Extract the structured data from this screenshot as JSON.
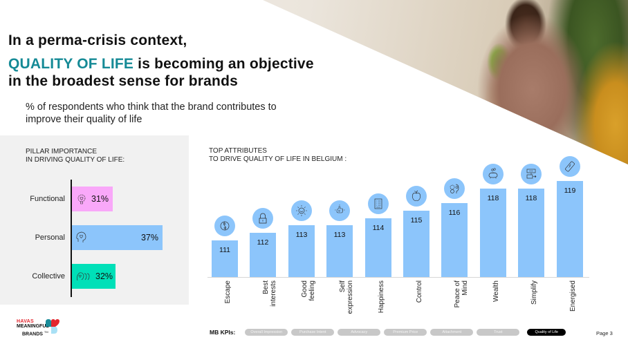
{
  "header": {
    "title_line1": "In a perma-crisis context,",
    "title_accent": "QUALITY OF LIFE",
    "title_line2_rest": " is becoming an objective",
    "title_line3": "in the broadest sense for brands",
    "subtitle_line1": "% of respondents who think that the brand contributes to",
    "subtitle_line2": "improve their quality of life",
    "accent_color": "#158a96"
  },
  "left_panel": {
    "heading_line1": "PILLAR IMPORTANCE",
    "heading_line2": "IN DRIVING QUALITY OF LIFE:"
  },
  "right_panel": {
    "heading_line1": "TOP ATTRIBUTES",
    "heading_line2": "TO DRIVE QUALITY OF LIFE IN BELGIUM :"
  },
  "chart_data": [
    {
      "type": "bar",
      "orientation": "horizontal",
      "title": "PILLAR IMPORTANCE IN DRIVING QUALITY OF LIFE:",
      "categories": [
        "Functional",
        "Personal",
        "Collective"
      ],
      "values": [
        31,
        37,
        32
      ],
      "value_labels": [
        "31%",
        "37%",
        "32%"
      ],
      "colors": [
        "#f9a8f9",
        "#8cc5fb",
        "#00e0b8"
      ],
      "icons": [
        "gear-heart-icon",
        "head-heart-icon",
        "group-heads-heart-icon"
      ],
      "unit": "%"
    },
    {
      "type": "bar",
      "orientation": "vertical",
      "title": "TOP ATTRIBUTES TO DRIVE QUALITY OF LIFE IN BELGIUM :",
      "categories": [
        "Escape",
        "Best interests",
        "Good feeling",
        "Self expression",
        "Happiness",
        "Control",
        "Peace of Mind",
        "Wealth",
        "Simplify",
        "Energised"
      ],
      "label_lines": [
        [
          "Escape"
        ],
        [
          "Best",
          "interests"
        ],
        [
          "Good",
          "feeling"
        ],
        [
          "Self",
          "expression"
        ],
        [
          "Happiness"
        ],
        [
          "Control"
        ],
        [
          "Peace of",
          "Mind"
        ],
        [
          "Wealth"
        ],
        [
          "Simplify"
        ],
        [
          "Energised"
        ]
      ],
      "values": [
        111,
        112,
        113,
        113,
        114,
        115,
        116,
        118,
        118,
        119
      ],
      "icons": [
        "yin-yang-icon",
        "padlock-icon",
        "smiling-sun-icon",
        "thumbs-up-heart-icon",
        "checklist-icon",
        "apple-icon",
        "brain-gears-icon",
        "piggy-bank-icon",
        "flowchart-icon",
        "battery-icon"
      ],
      "color": "#8cc5fb",
      "xlabel": "",
      "ylabel": "",
      "grid": false
    }
  ],
  "footer": {
    "logo_havas": "HAVAS",
    "logo_meaningful": "MEANINGFUL",
    "logo_brands": "BRANDS",
    "logo_tm": "TM",
    "kpi_title": "MB KPIs:",
    "kpis": [
      {
        "label": "Overall Impression",
        "active": false
      },
      {
        "label": "Purchase Intent",
        "active": false
      },
      {
        "label": "Advocacy",
        "active": false
      },
      {
        "label": "Premium Price",
        "active": false
      },
      {
        "label": "Attachment",
        "active": false
      },
      {
        "label": "Trust",
        "active": false
      },
      {
        "label": "Quality of Life",
        "active": true
      }
    ],
    "page": "Page 3"
  }
}
